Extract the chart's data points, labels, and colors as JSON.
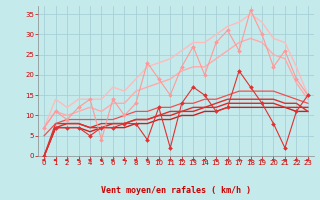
{
  "xlabel": "Vent moyen/en rafales ( km/h )",
  "xlim": [
    -0.5,
    23.5
  ],
  "ylim": [
    0,
    37
  ],
  "yticks": [
    0,
    5,
    10,
    15,
    20,
    25,
    30,
    35
  ],
  "xticks": [
    0,
    1,
    2,
    3,
    4,
    5,
    6,
    7,
    8,
    9,
    10,
    11,
    12,
    13,
    14,
    15,
    16,
    17,
    18,
    19,
    20,
    21,
    22,
    23
  ],
  "bg_color": "#c5eaec",
  "grid_color": "#a8d0d8",
  "series": [
    {
      "x": [
        0,
        1,
        2,
        3,
        4,
        5,
        6,
        7,
        8,
        9,
        10,
        11,
        12,
        13,
        14,
        15,
        16,
        17,
        18,
        19,
        20,
        21,
        22,
        23
      ],
      "y": [
        0,
        7,
        7,
        7,
        5,
        7,
        7,
        8,
        8,
        4,
        12,
        2,
        13,
        17,
        15,
        11,
        12,
        21,
        17,
        13,
        8,
        2,
        11,
        15
      ],
      "color": "#e03030",
      "lw": 0.8,
      "marker": "D",
      "ms": 2.0,
      "zorder": 5
    },
    {
      "x": [
        0,
        1,
        2,
        3,
        4,
        5,
        6,
        7,
        8,
        9,
        10,
        11,
        12,
        13,
        14,
        15,
        16,
        17,
        18,
        19,
        20,
        21,
        22,
        23
      ],
      "y": [
        0,
        7,
        7,
        7,
        6,
        7,
        7,
        7,
        8,
        8,
        9,
        9,
        10,
        10,
        11,
        11,
        12,
        12,
        12,
        12,
        12,
        12,
        11,
        11
      ],
      "color": "#cc2020",
      "lw": 1.0,
      "marker": null,
      "ms": 0,
      "zorder": 3
    },
    {
      "x": [
        0,
        1,
        2,
        3,
        4,
        5,
        6,
        7,
        8,
        9,
        10,
        11,
        12,
        13,
        14,
        15,
        16,
        17,
        18,
        19,
        20,
        21,
        22,
        23
      ],
      "y": [
        0,
        7,
        8,
        8,
        7,
        7,
        8,
        8,
        9,
        9,
        10,
        10,
        11,
        11,
        12,
        12,
        13,
        13,
        13,
        13,
        13,
        12,
        12,
        12
      ],
      "color": "#dd2828",
      "lw": 1.0,
      "marker": null,
      "ms": 0,
      "zorder": 3
    },
    {
      "x": [
        0,
        1,
        2,
        3,
        4,
        5,
        6,
        7,
        8,
        9,
        10,
        11,
        12,
        13,
        14,
        15,
        16,
        17,
        18,
        19,
        20,
        21,
        22,
        23
      ],
      "y": [
        0,
        8,
        8,
        8,
        7,
        8,
        8,
        8,
        9,
        9,
        10,
        11,
        11,
        12,
        12,
        13,
        14,
        14,
        14,
        14,
        14,
        13,
        13,
        11
      ],
      "color": "#dd3030",
      "lw": 1.0,
      "marker": null,
      "ms": 0,
      "zorder": 3
    },
    {
      "x": [
        0,
        1,
        2,
        3,
        4,
        5,
        6,
        7,
        8,
        9,
        10,
        11,
        12,
        13,
        14,
        15,
        16,
        17,
        18,
        19,
        20,
        21,
        22,
        23
      ],
      "y": [
        5,
        8,
        9,
        9,
        9,
        9,
        9,
        10,
        11,
        11,
        12,
        12,
        13,
        13,
        14,
        14,
        15,
        16,
        16,
        16,
        16,
        15,
        14,
        13
      ],
      "color": "#ee5050",
      "lw": 0.9,
      "marker": null,
      "ms": 0,
      "zorder": 3
    },
    {
      "x": [
        0,
        1,
        2,
        3,
        4,
        5,
        6,
        7,
        8,
        9,
        10,
        11,
        12,
        13,
        14,
        15,
        16,
        17,
        18,
        19,
        20,
        21,
        22,
        23
      ],
      "y": [
        7,
        11,
        9,
        12,
        14,
        4,
        14,
        10,
        13,
        23,
        19,
        15,
        22,
        27,
        20,
        28,
        31,
        26,
        36,
        30,
        22,
        26,
        19,
        15
      ],
      "color": "#ff9999",
      "lw": 0.8,
      "marker": "D",
      "ms": 2.0,
      "zorder": 4
    },
    {
      "x": [
        0,
        1,
        2,
        3,
        4,
        5,
        6,
        7,
        8,
        9,
        10,
        11,
        12,
        13,
        14,
        15,
        16,
        17,
        18,
        19,
        20,
        21,
        22,
        23
      ],
      "y": [
        7,
        14,
        12,
        14,
        14,
        14,
        17,
        16,
        19,
        22,
        23,
        24,
        26,
        28,
        28,
        30,
        32,
        33,
        35,
        33,
        29,
        28,
        22,
        15
      ],
      "color": "#ffbbbb",
      "lw": 1.0,
      "marker": null,
      "ms": 0,
      "zorder": 2
    },
    {
      "x": [
        0,
        1,
        2,
        3,
        4,
        5,
        6,
        7,
        8,
        9,
        10,
        11,
        12,
        13,
        14,
        15,
        16,
        17,
        18,
        19,
        20,
        21,
        22,
        23
      ],
      "y": [
        7,
        11,
        10,
        11,
        12,
        11,
        13,
        13,
        16,
        17,
        18,
        19,
        21,
        22,
        22,
        24,
        26,
        28,
        29,
        28,
        25,
        24,
        18,
        14
      ],
      "color": "#ffaaaa",
      "lw": 1.0,
      "marker": null,
      "ms": 0,
      "zorder": 2
    }
  ],
  "arrow_color": "#dd2020",
  "arrow_angles": [
    180,
    180,
    180,
    175,
    170,
    175,
    180,
    180,
    175,
    170,
    165,
    160,
    155,
    155,
    150,
    145,
    145,
    145,
    140,
    140,
    145,
    150,
    170,
    180
  ]
}
